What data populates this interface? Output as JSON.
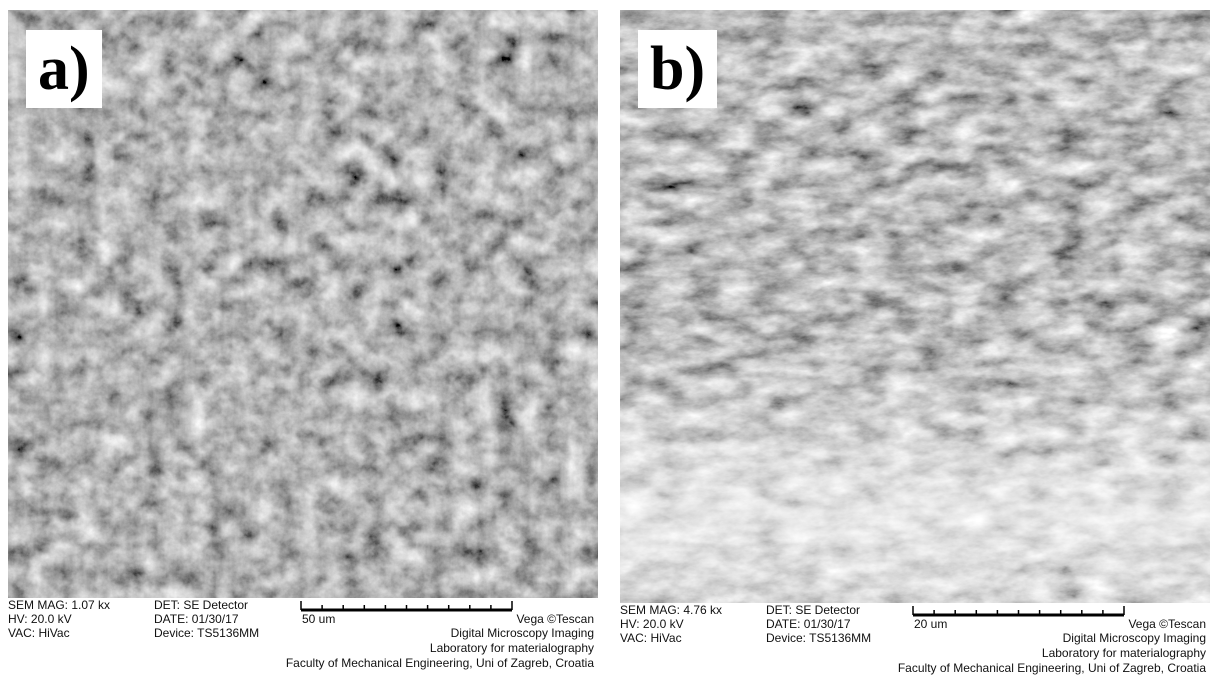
{
  "panels": [
    {
      "label": "a)",
      "info": {
        "mag": "SEM MAG: 1.07 kx",
        "hv": "HV:  20.0 kV",
        "vac": "VAC: HiVac",
        "det": "DET: SE Detector",
        "date": "DATE: 01/30/17",
        "device": "Device: TS5136MM",
        "scale": "50 um",
        "vendor": "Vega ©Tescan",
        "lab1": "Digital Microscopy Imaging",
        "lab2": "Laboratory for materialography",
        "lab3": "Faculty of Mechanical Engineering, Uni of Zagreb, Croatia"
      }
    },
    {
      "label": "b)",
      "info": {
        "mag": "SEM MAG: 4.76 kx",
        "hv": "HV:  20.0 kV",
        "vac": "VAC: HiVac",
        "det": "DET: SE Detector",
        "date": "DATE: 01/30/17",
        "device": "Device: TS5136MM",
        "scale": "20 um",
        "vendor": "Vega ©Tescan",
        "lab1": "Digital Microscopy Imaging",
        "lab2": "Laboratory for materialography",
        "lab3": "Faculty of Mechanical Engineering, Uni of Zagreb, Croatia"
      }
    }
  ]
}
